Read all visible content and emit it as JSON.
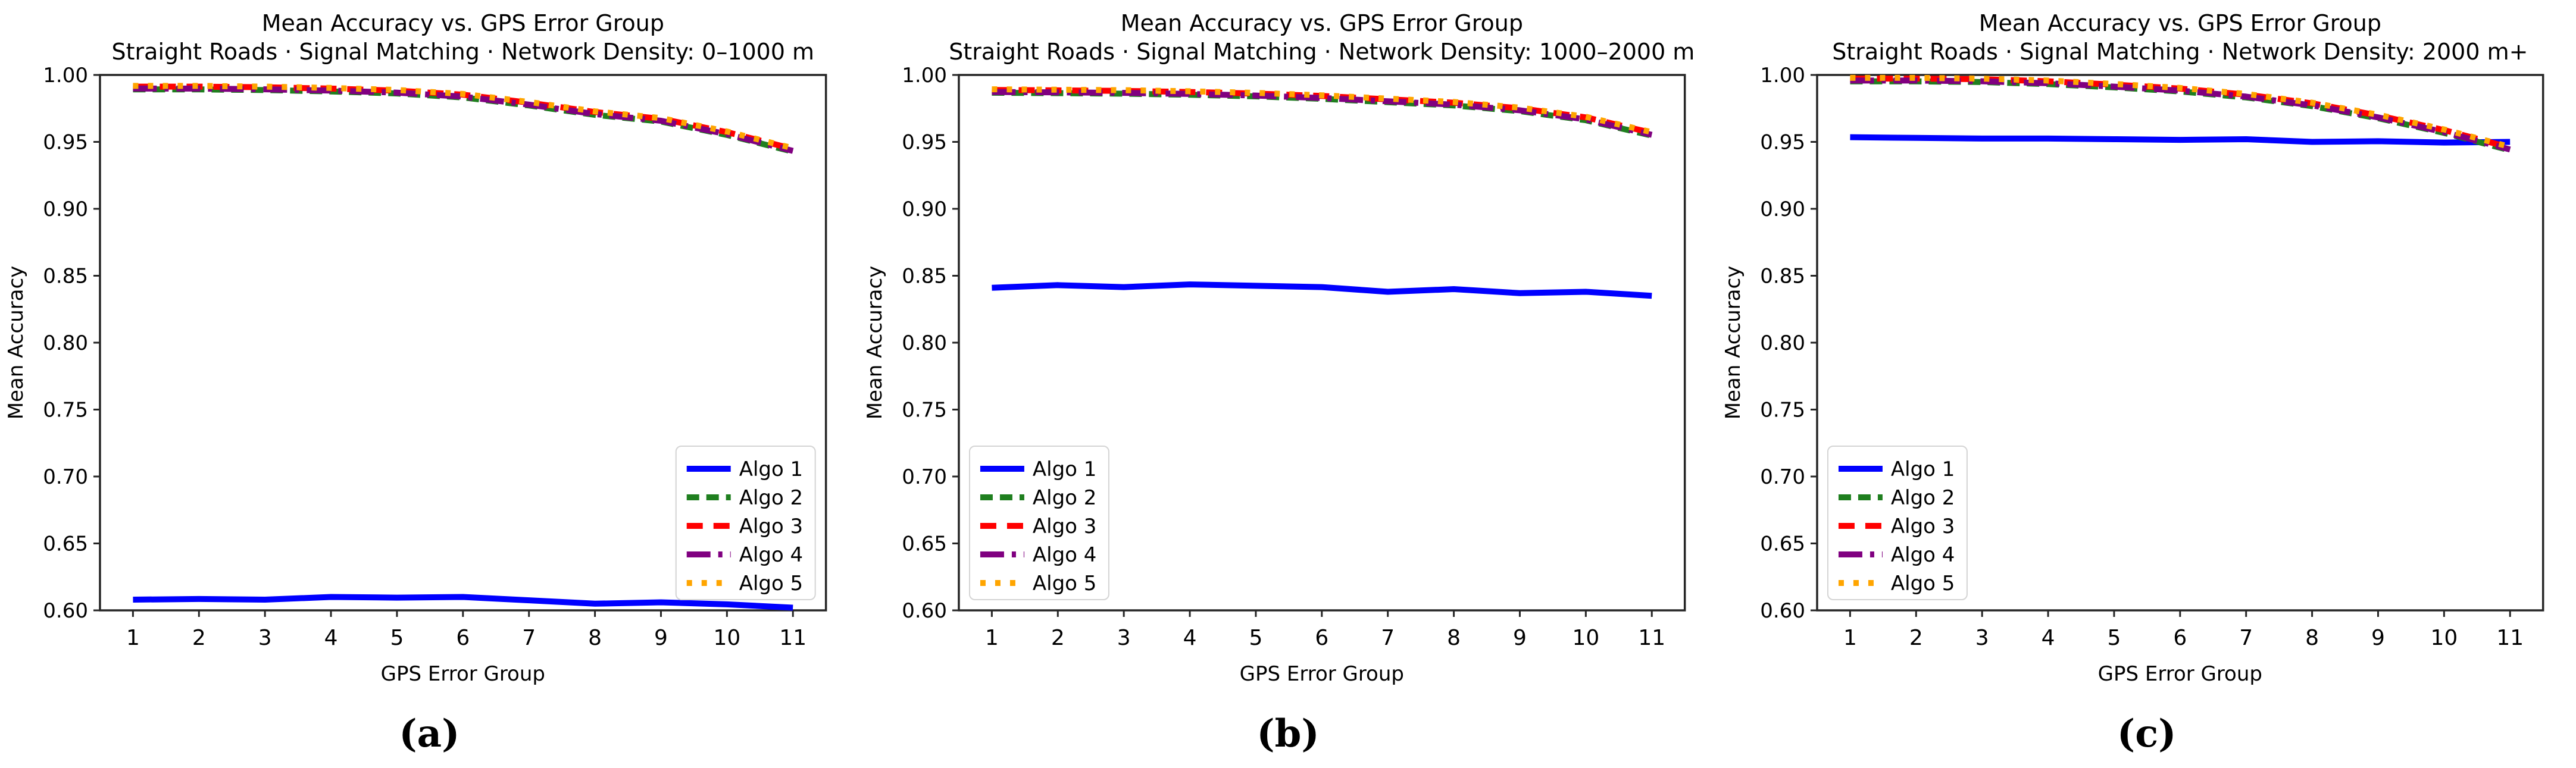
{
  "figure": {
    "background": "#ffffff",
    "text_color": "#000000",
    "spine_color": "#262626"
  },
  "chart_data": [
    {
      "type": "line",
      "caption": "(a)",
      "title": "Mean Accuracy vs. GPS Error Group",
      "subtitle": "Straight Roads · Signal Matching · Network Density: 0–1000 m",
      "xlabel": "GPS Error Group",
      "ylabel": "Mean Accuracy",
      "x": [
        1,
        2,
        3,
        4,
        5,
        6,
        7,
        8,
        9,
        10,
        11
      ],
      "xticks": [
        1,
        2,
        3,
        4,
        5,
        6,
        7,
        8,
        9,
        10,
        11
      ],
      "yticks": [
        0.6,
        0.65,
        0.7,
        0.75,
        0.8,
        0.85,
        0.9,
        0.95,
        1.0
      ],
      "xlim": [
        0.5,
        11.5
      ],
      "ylim": [
        0.6,
        1.0
      ],
      "grid": false,
      "legend_position": "lower right",
      "series": [
        {
          "name": "Algo 1",
          "color": "#0000ff",
          "style": "solid",
          "values": [
            0.608,
            0.6085,
            0.608,
            0.61,
            0.6095,
            0.61,
            0.6075,
            0.605,
            0.606,
            0.6045,
            0.602
          ]
        },
        {
          "name": "Algo 2",
          "color": "#1f7f1f",
          "style": "dashed",
          "values": [
            0.9892,
            0.9892,
            0.9887,
            0.9877,
            0.9862,
            0.9832,
            0.9772,
            0.9702,
            0.9652,
            0.9552,
            0.9427
          ]
        },
        {
          "name": "Algo 3",
          "color": "#ff0000",
          "style": "dashed-long",
          "values": [
            0.9913,
            0.9913,
            0.9908,
            0.9898,
            0.9883,
            0.9853,
            0.9793,
            0.9723,
            0.9673,
            0.9573,
            0.9448
          ]
        },
        {
          "name": "Algo 4",
          "color": "#800080",
          "style": "dashdot",
          "values": [
            0.9898,
            0.9898,
            0.9893,
            0.9883,
            0.9868,
            0.9838,
            0.9778,
            0.9708,
            0.9658,
            0.9558,
            0.9433
          ]
        },
        {
          "name": "Algo 5",
          "color": "#ffa500",
          "style": "dotted",
          "values": [
            0.9918,
            0.9918,
            0.9913,
            0.9903,
            0.9888,
            0.9858,
            0.9798,
            0.9728,
            0.9678,
            0.9578,
            0.9453
          ]
        }
      ]
    },
    {
      "type": "line",
      "caption": "(b)",
      "title": "Mean Accuracy vs. GPS Error Group",
      "subtitle": "Straight Roads · Signal Matching · Network Density: 1000–2000 m",
      "xlabel": "GPS Error Group",
      "ylabel": "Mean Accuracy",
      "x": [
        1,
        2,
        3,
        4,
        5,
        6,
        7,
        8,
        9,
        10,
        11
      ],
      "xticks": [
        1,
        2,
        3,
        4,
        5,
        6,
        7,
        8,
        9,
        10,
        11
      ],
      "yticks": [
        0.6,
        0.65,
        0.7,
        0.75,
        0.8,
        0.85,
        0.9,
        0.95,
        1.0
      ],
      "xlim": [
        0.5,
        11.5
      ],
      "ylim": [
        0.6,
        1.0
      ],
      "grid": false,
      "legend_position": "lower left",
      "series": [
        {
          "name": "Algo 1",
          "color": "#0000ff",
          "style": "solid",
          "values": [
            0.841,
            0.843,
            0.8415,
            0.8435,
            0.8425,
            0.8415,
            0.838,
            0.84,
            0.837,
            0.838,
            0.835
          ]
        },
        {
          "name": "Algo 2",
          "color": "#1f7f1f",
          "style": "dashed",
          "values": [
            0.9867,
            0.9864,
            0.986,
            0.9852,
            0.984,
            0.9822,
            0.9797,
            0.9772,
            0.973,
            0.9662,
            0.9547
          ]
        },
        {
          "name": "Algo 3",
          "color": "#ff0000",
          "style": "dashed-long",
          "values": [
            0.9888,
            0.9885,
            0.9881,
            0.9873,
            0.9861,
            0.9843,
            0.9818,
            0.9793,
            0.9751,
            0.9683,
            0.9568
          ]
        },
        {
          "name": "Algo 4",
          "color": "#800080",
          "style": "dashdot",
          "values": [
            0.9873,
            0.987,
            0.9866,
            0.9858,
            0.9846,
            0.9828,
            0.9803,
            0.9778,
            0.9736,
            0.9668,
            0.9553
          ]
        },
        {
          "name": "Algo 5",
          "color": "#ffa500",
          "style": "dotted",
          "values": [
            0.9893,
            0.989,
            0.9886,
            0.9878,
            0.9866,
            0.9848,
            0.9823,
            0.9798,
            0.9756,
            0.9688,
            0.9573
          ]
        }
      ]
    },
    {
      "type": "line",
      "caption": "(c)",
      "title": "Mean Accuracy vs. GPS Error Group",
      "subtitle": "Straight Roads · Signal Matching · Network Density: 2000 m+",
      "xlabel": "GPS Error Group",
      "ylabel": "Mean Accuracy",
      "x": [
        1,
        2,
        3,
        4,
        5,
        6,
        7,
        8,
        9,
        10,
        11
      ],
      "xticks": [
        1,
        2,
        3,
        4,
        5,
        6,
        7,
        8,
        9,
        10,
        11
      ],
      "yticks": [
        0.6,
        0.65,
        0.7,
        0.75,
        0.8,
        0.85,
        0.9,
        0.95,
        1.0
      ],
      "xlim": [
        0.5,
        11.5
      ],
      "ylim": [
        0.6,
        1.0
      ],
      "grid": false,
      "legend_position": "lower left",
      "series": [
        {
          "name": "Algo 1",
          "color": "#0000ff",
          "style": "solid",
          "values": [
            0.9535,
            0.953,
            0.9525,
            0.9525,
            0.952,
            0.9515,
            0.952,
            0.95,
            0.9505,
            0.9495,
            0.95
          ]
        },
        {
          "name": "Algo 2",
          "color": "#1f7f1f",
          "style": "dashed",
          "values": [
            0.9952,
            0.9952,
            0.9947,
            0.9932,
            0.9907,
            0.9877,
            0.9832,
            0.9767,
            0.9677,
            0.9567,
            0.9437
          ]
        },
        {
          "name": "Algo 3",
          "color": "#ff0000",
          "style": "dashed-long",
          "values": [
            0.9973,
            0.9973,
            0.9968,
            0.9953,
            0.9928,
            0.9898,
            0.9853,
            0.9788,
            0.9698,
            0.9588,
            0.9458
          ]
        },
        {
          "name": "Algo 4",
          "color": "#800080",
          "style": "dashdot",
          "values": [
            0.9958,
            0.9958,
            0.9953,
            0.9938,
            0.9913,
            0.9883,
            0.9838,
            0.9773,
            0.9683,
            0.9573,
            0.9443
          ]
        },
        {
          "name": "Algo 5",
          "color": "#ffa500",
          "style": "dotted",
          "values": [
            0.9978,
            0.9978,
            0.9973,
            0.9958,
            0.9933,
            0.9903,
            0.9858,
            0.9793,
            0.9703,
            0.9593,
            0.9463
          ]
        }
      ]
    }
  ]
}
